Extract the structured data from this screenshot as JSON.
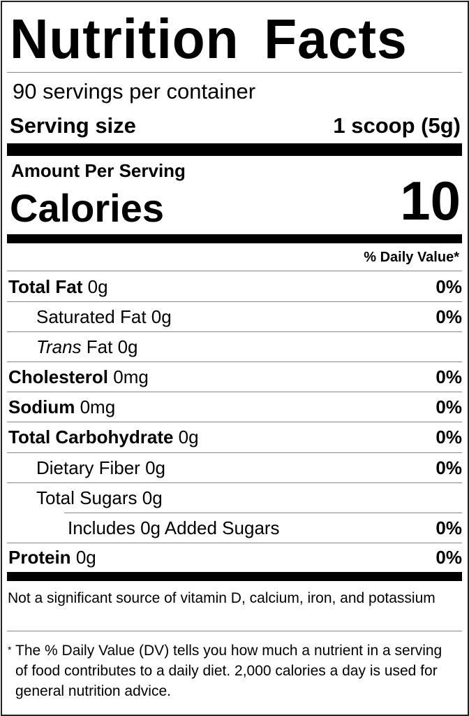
{
  "title": "Nutrition Facts",
  "servings_per_container": "90 servings per container",
  "serving_size": {
    "label": "Serving size",
    "value": "1 scoop (5g)"
  },
  "amount_per_serving": "Amount Per Serving",
  "calories": {
    "label": "Calories",
    "value": "10"
  },
  "daily_value_header": "% Daily Value*",
  "rows": [
    {
      "name": "Total Fat",
      "amount": "0g",
      "dv": "0%"
    },
    {
      "name": "Saturated Fat",
      "amount": "0g",
      "dv": "0%"
    },
    {
      "name_italic": "Trans",
      "name": "Fat",
      "amount": "0g"
    },
    {
      "name": "Cholesterol",
      "amount": "0mg",
      "dv": "0%"
    },
    {
      "name": "Sodium",
      "amount": "0mg",
      "dv": "0%"
    },
    {
      "name": "Total Carbohydrate",
      "amount": "0g",
      "dv": "0%"
    },
    {
      "name": "Dietary Fiber",
      "amount": "0g",
      "dv": "0%"
    },
    {
      "name": "Total Sugars",
      "amount": "0g"
    },
    {
      "name": "Includes 0g Added Sugars",
      "dv": "0%"
    },
    {
      "name": "Protein",
      "amount": "0g",
      "dv": "0%"
    }
  ],
  "not_significant": "Not a significant source of vitamin D, calcium, iron, and potassium",
  "footnote_star": "*",
  "footnote": "The % Daily Value (DV) tells you how much a nutrient in a serving of food contributes to a daily diet. 2,000 calories a day is used for general nutrition advice."
}
